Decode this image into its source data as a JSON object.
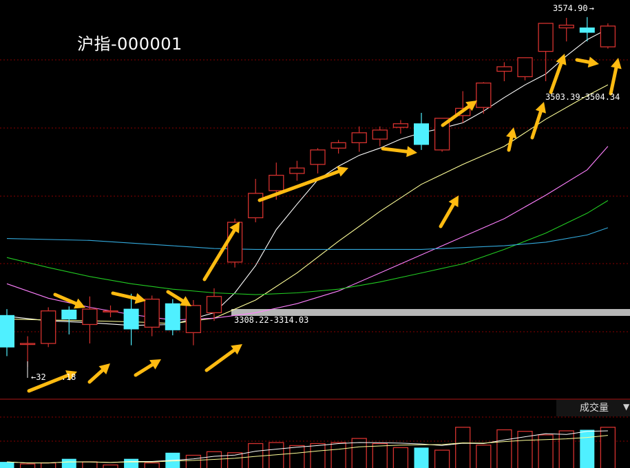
{
  "title": "沪指-000001",
  "volume_panel": {
    "label": "成交量",
    "dropdown_icon": "caret-down-icon"
  },
  "colors": {
    "up": "#d5322f",
    "down": "#4ff0ff",
    "ma5": "#ffffff",
    "ma10": "#ffff99",
    "ma20": "#ff80ff",
    "ma30": "#22cc22",
    "ma60": "#33aadd",
    "arrow": "#ffbb11",
    "grid": "#8b0000",
    "highlight_band": "#b7b7b7"
  },
  "annotations": {
    "high": "3574.90",
    "low": "32",
    "low_suffix": ".18",
    "range_top": "3503.39-3504.34",
    "range_mid": "3308.22-3314.03"
  },
  "chart_data": {
    "type": "candlestick",
    "ylim": [
      3160,
      3590
    ],
    "candles": [
      {
        "o": 3245,
        "c": 3210,
        "h": 3252,
        "l": 3200
      },
      {
        "o": 3214,
        "c": 3214,
        "h": 3222,
        "l": 3188
      },
      {
        "o": 3214,
        "c": 3250,
        "h": 3254,
        "l": 3210
      },
      {
        "o": 3251,
        "c": 3241,
        "h": 3255,
        "l": 3224
      },
      {
        "o": 3235,
        "c": 3252,
        "h": 3266,
        "l": 3214
      },
      {
        "o": 3250,
        "c": 3250,
        "h": 3256,
        "l": 3243
      },
      {
        "o": 3252,
        "c": 3230,
        "h": 3269,
        "l": 3212
      },
      {
        "o": 3232,
        "c": 3263,
        "h": 3267,
        "l": 3222
      },
      {
        "o": 3258,
        "c": 3229,
        "h": 3263,
        "l": 3223
      },
      {
        "o": 3226,
        "c": 3256,
        "h": 3262,
        "l": 3212
      },
      {
        "o": 3248,
        "c": 3266,
        "h": 3275,
        "l": 3239
      },
      {
        "o": 3304,
        "c": 3348,
        "h": 3352,
        "l": 3298
      },
      {
        "o": 3353,
        "c": 3380,
        "h": 3396,
        "l": 3348
      },
      {
        "o": 3383,
        "c": 3400,
        "h": 3414,
        "l": 3373
      },
      {
        "o": 3402,
        "c": 3408,
        "h": 3416,
        "l": 3394
      },
      {
        "o": 3412,
        "c": 3428,
        "h": 3430,
        "l": 3402
      },
      {
        "o": 3430,
        "c": 3436,
        "h": 3439,
        "l": 3424
      },
      {
        "o": 3436,
        "c": 3447,
        "h": 3454,
        "l": 3426
      },
      {
        "o": 3440,
        "c": 3450,
        "h": 3454,
        "l": 3432
      },
      {
        "o": 3453,
        "c": 3457,
        "h": 3461,
        "l": 3446
      },
      {
        "o": 3457,
        "c": 3434,
        "h": 3469,
        "l": 3428
      },
      {
        "o": 3428,
        "c": 3463,
        "h": 3463,
        "l": 3426
      },
      {
        "o": 3466,
        "c": 3474,
        "h": 3493,
        "l": 3458
      },
      {
        "o": 3475,
        "c": 3502,
        "h": 3503,
        "l": 3468
      },
      {
        "o": 3515,
        "c": 3520,
        "h": 3525,
        "l": 3504
      },
      {
        "o": 3509,
        "c": 3530,
        "h": 3530,
        "l": 3505
      },
      {
        "o": 3537,
        "c": 3568,
        "h": 3568,
        "l": 3504
      },
      {
        "o": 3563,
        "c": 3566,
        "h": 3574,
        "l": 3548
      },
      {
        "o": 3563,
        "c": 3558,
        "h": 3574.9,
        "l": 3548
      },
      {
        "o": 3542,
        "c": 3565,
        "h": 3568,
        "l": 3540
      }
    ],
    "ma": [
      {
        "name": "MA5",
        "points": [
          [
            0,
            3244
          ],
          [
            2,
            3239
          ],
          [
            4,
            3237
          ],
          [
            6,
            3234
          ],
          [
            8,
            3235
          ],
          [
            10,
            3248
          ],
          [
            11,
            3270
          ],
          [
            12,
            3300
          ],
          [
            13,
            3340
          ],
          [
            14,
            3368
          ],
          [
            15,
            3395
          ],
          [
            16,
            3410
          ],
          [
            17,
            3422
          ],
          [
            18,
            3430
          ],
          [
            19,
            3440
          ],
          [
            20,
            3447
          ],
          [
            21,
            3452
          ],
          [
            22,
            3458
          ],
          [
            23,
            3471
          ],
          [
            24,
            3486
          ],
          [
            25,
            3500
          ],
          [
            26,
            3512
          ],
          [
            27,
            3532
          ],
          [
            28,
            3550
          ],
          [
            29,
            3562
          ]
        ]
      },
      {
        "name": "MA10",
        "points": [
          [
            0,
            3241
          ],
          [
            2,
            3240
          ],
          [
            4,
            3239
          ],
          [
            6,
            3238
          ],
          [
            8,
            3236
          ],
          [
            10,
            3242
          ],
          [
            12,
            3262
          ],
          [
            14,
            3292
          ],
          [
            16,
            3327
          ],
          [
            18,
            3360
          ],
          [
            20,
            3390
          ],
          [
            22,
            3412
          ],
          [
            24,
            3432
          ],
          [
            26,
            3462
          ],
          [
            28,
            3488
          ],
          [
            29,
            3500
          ]
        ]
      },
      {
        "name": "MA20",
        "points": [
          [
            0,
            3280
          ],
          [
            2,
            3264
          ],
          [
            4,
            3254
          ],
          [
            6,
            3246
          ],
          [
            8,
            3240
          ],
          [
            10,
            3242
          ],
          [
            12,
            3248
          ],
          [
            14,
            3258
          ],
          [
            16,
            3272
          ],
          [
            18,
            3292
          ],
          [
            20,
            3312
          ],
          [
            22,
            3332
          ],
          [
            24,
            3352
          ],
          [
            26,
            3378
          ],
          [
            28,
            3406
          ],
          [
            29,
            3432
          ]
        ]
      },
      {
        "name": "MA30",
        "points": [
          [
            0,
            3309
          ],
          [
            2,
            3298
          ],
          [
            4,
            3288
          ],
          [
            6,
            3280
          ],
          [
            8,
            3274
          ],
          [
            10,
            3270
          ],
          [
            12,
            3268
          ],
          [
            14,
            3270
          ],
          [
            16,
            3274
          ],
          [
            18,
            3282
          ],
          [
            20,
            3292
          ],
          [
            22,
            3302
          ],
          [
            24,
            3318
          ],
          [
            26,
            3336
          ],
          [
            28,
            3358
          ],
          [
            29,
            3372
          ]
        ]
      },
      {
        "name": "MA60",
        "points": [
          [
            0,
            3330
          ],
          [
            4,
            3328
          ],
          [
            8,
            3322
          ],
          [
            10,
            3319
          ],
          [
            12,
            3318
          ],
          [
            16,
            3318
          ],
          [
            20,
            3318
          ],
          [
            24,
            3322
          ],
          [
            26,
            3326
          ],
          [
            28,
            3334
          ],
          [
            29,
            3342
          ]
        ]
      }
    ],
    "volume": {
      "ylim": [
        0,
        100
      ],
      "bars": [
        12,
        8,
        10,
        18,
        12,
        6,
        18,
        10,
        30,
        25,
        32,
        30,
        48,
        50,
        44,
        48,
        50,
        58,
        48,
        40,
        40,
        35,
        80,
        45,
        75,
        72,
        65,
        73,
        75,
        80
      ]
    }
  }
}
